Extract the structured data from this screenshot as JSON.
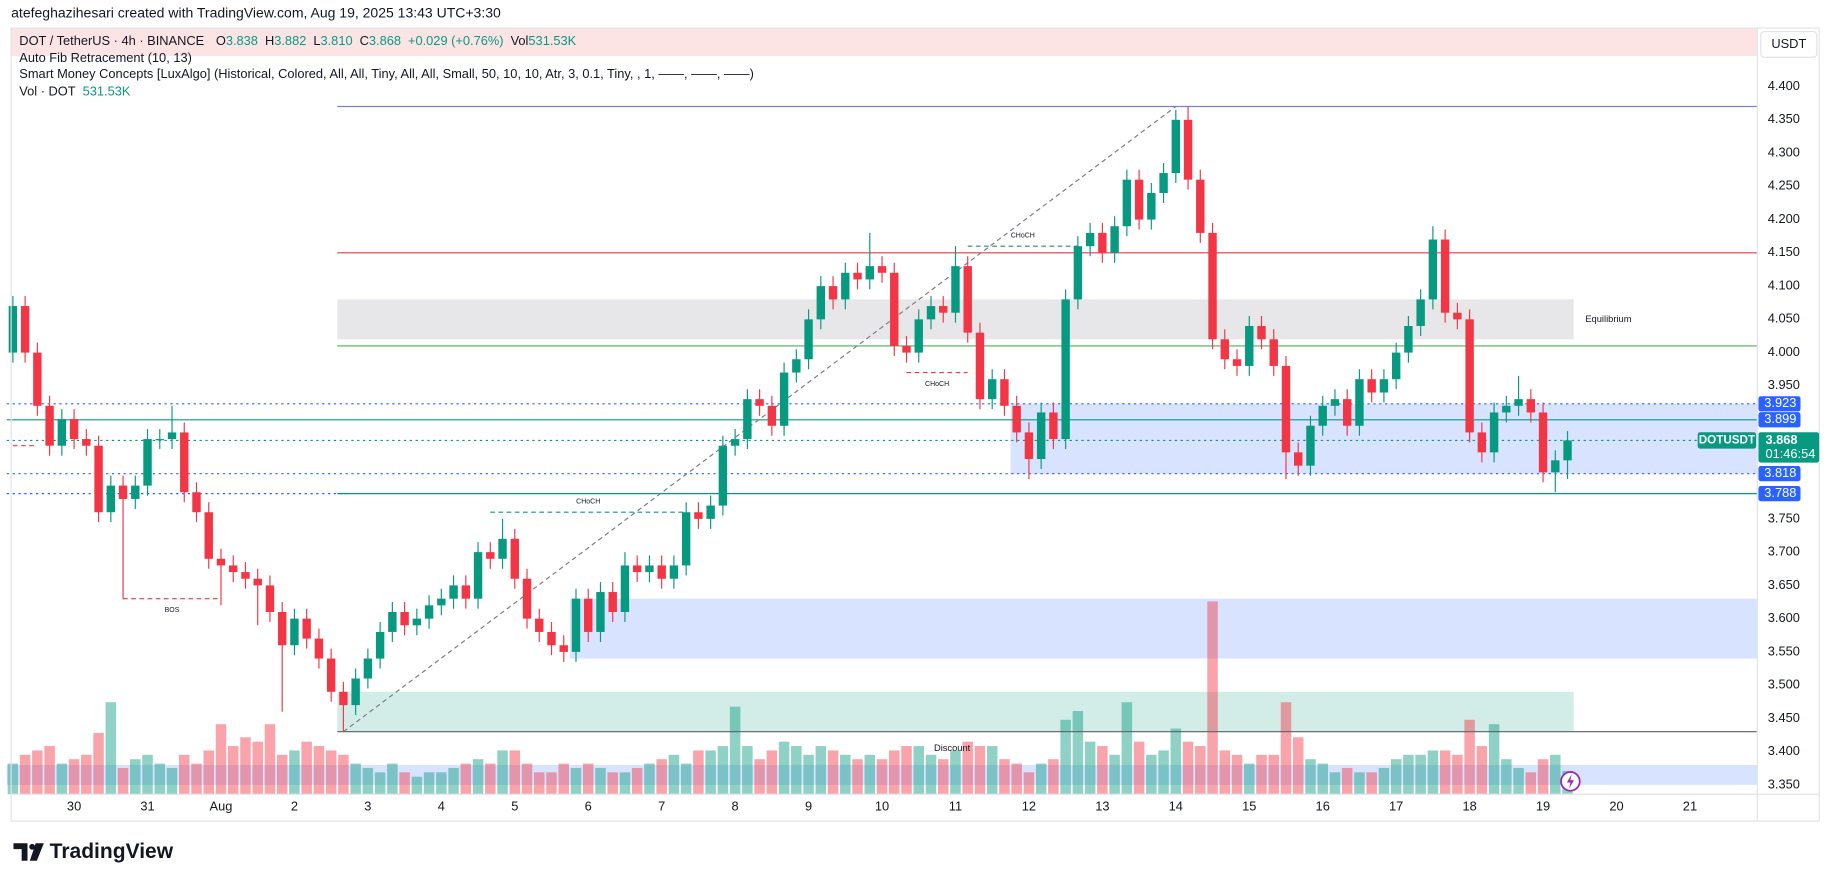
{
  "header": {
    "credit": "atefeghazihesari created with TradingView.com, Aug 19, 2025 13:43 UTC+3:30",
    "symbol": "DOT / TetherUS · 4h · BINANCE",
    "ohlc": [
      {
        "key": "O",
        "value": "3.838"
      },
      {
        "key": "H",
        "value": "3.882"
      },
      {
        "key": "L",
        "value": "3.810"
      },
      {
        "key": "C",
        "value": "3.868"
      }
    ],
    "change": "+0.029 (+0.76%)",
    "vol_key": "Vol",
    "vol_value": "531.53K",
    "indicators": [
      "Auto Fib Retracement (10, 13)",
      "Smart Money Concepts [LuxAlgo] (Historical, Colored, All, All, Tiny, All, All, Small, 50, 10, 10, Atr, 3, 0.1, Tiny, , 1, ——, ——, ——)"
    ],
    "vol_pane": "Vol · DOT",
    "vol_pane_value": "531.53K",
    "currency": "USDT",
    "brand": "TradingView"
  },
  "chart_data": {
    "type": "candlestick",
    "up_color": "#089981",
    "down_color": "#f23645",
    "categories": [
      null,
      null,
      null,
      null,
      null,
      "30",
      null,
      null,
      null,
      null,
      null,
      "31",
      null,
      null,
      null,
      null,
      null,
      "Aug",
      null,
      null,
      null,
      null,
      null,
      "2",
      null,
      null,
      null,
      null,
      null,
      "3",
      null,
      null,
      null,
      null,
      null,
      "4",
      null,
      null,
      null,
      null,
      null,
      "5",
      null,
      null,
      null,
      null,
      null,
      "6",
      null,
      null,
      null,
      null,
      null,
      "7",
      null,
      null,
      null,
      null,
      null,
      "8",
      null,
      null,
      null,
      null,
      null,
      "9",
      null,
      null,
      null,
      null,
      null,
      "10",
      null,
      null,
      null,
      null,
      null,
      "11",
      null,
      null,
      null,
      null,
      null,
      "12",
      null,
      null,
      null,
      null,
      null,
      "13",
      null,
      null,
      null,
      null,
      null,
      "14",
      null,
      null,
      null,
      null,
      null,
      "15",
      null,
      null,
      null,
      null,
      null,
      "16",
      null,
      null,
      null,
      null,
      null,
      "17",
      null,
      null,
      null,
      null,
      null,
      "18",
      null,
      null,
      null,
      null,
      null,
      "19",
      null,
      null,
      null,
      null,
      null,
      "20",
      null,
      null,
      null,
      null,
      null,
      "21",
      null,
      null,
      null,
      null,
      null
    ],
    "open": [
      4.0,
      4.07,
      4.0,
      3.92,
      3.86,
      3.9,
      3.87,
      3.86,
      3.76,
      3.8,
      3.78,
      3.8,
      3.87,
      3.87,
      3.88,
      3.79,
      3.76,
      3.69,
      3.68,
      3.67,
      3.66,
      3.65,
      3.61,
      3.56,
      3.6,
      3.57,
      3.54,
      3.49,
      3.47,
      3.51,
      3.54,
      3.58,
      3.61,
      3.59,
      3.6,
      3.62,
      3.63,
      3.65,
      3.63,
      3.7,
      3.69,
      3.72,
      3.66,
      3.6,
      3.58,
      3.56,
      3.55,
      3.63,
      3.58,
      3.64,
      3.61,
      3.68,
      3.67,
      3.68,
      3.66,
      3.68,
      3.76,
      3.75,
      3.77,
      3.86,
      3.87,
      3.93,
      3.92,
      3.89,
      3.97,
      3.99,
      4.05,
      4.1,
      4.08,
      4.12,
      4.11,
      4.13,
      4.12,
      4.01,
      4.0,
      4.05,
      4.07,
      4.06,
      4.13,
      4.03,
      3.93,
      3.96,
      3.92,
      3.88,
      3.84,
      3.91,
      3.87,
      4.08,
      4.16,
      4.18,
      4.15,
      4.19,
      4.26,
      4.2,
      4.24,
      4.27,
      4.35,
      4.26,
      4.18,
      4.02,
      3.99,
      3.98,
      4.04,
      4.02,
      3.98,
      3.85,
      3.83,
      3.89,
      3.92,
      3.93,
      3.89,
      3.96,
      3.94,
      3.96,
      4.0,
      4.04,
      4.08,
      4.17,
      4.06,
      4.05,
      3.88,
      3.85,
      3.91,
      3.92,
      3.93,
      3.91,
      3.82,
      3.838,
      null,
      null,
      null,
      null,
      null,
      null,
      null,
      null,
      null,
      null,
      null,
      null,
      null,
      null,
      null
    ],
    "high": [
      4.085,
      4.085,
      4.015,
      3.935,
      3.915,
      3.915,
      3.885,
      3.875,
      3.815,
      3.815,
      3.815,
      3.885,
      3.885,
      3.92,
      3.895,
      3.805,
      3.775,
      3.705,
      3.695,
      3.685,
      3.675,
      3.665,
      3.625,
      3.615,
      3.615,
      3.585,
      3.555,
      3.505,
      3.525,
      3.555,
      3.595,
      3.625,
      3.625,
      3.615,
      3.635,
      3.645,
      3.665,
      3.665,
      3.715,
      3.715,
      3.75,
      3.735,
      3.675,
      3.615,
      3.595,
      3.575,
      3.645,
      3.645,
      3.655,
      3.655,
      3.7,
      3.695,
      3.695,
      3.695,
      3.695,
      3.775,
      3.775,
      3.785,
      3.875,
      3.885,
      3.945,
      3.945,
      3.935,
      3.985,
      4.005,
      4.065,
      4.115,
      4.115,
      4.135,
      4.135,
      4.18,
      4.145,
      4.135,
      4.025,
      4.065,
      4.085,
      4.085,
      4.16,
      4.145,
      4.045,
      3.975,
      3.975,
      3.935,
      3.895,
      3.925,
      3.925,
      4.095,
      4.175,
      4.195,
      4.195,
      4.205,
      4.275,
      4.275,
      4.255,
      4.285,
      4.365,
      4.37,
      4.275,
      4.195,
      4.035,
      4.005,
      4.055,
      4.055,
      4.035,
      3.995,
      3.865,
      3.905,
      3.935,
      3.945,
      3.945,
      3.975,
      3.975,
      3.975,
      4.015,
      4.055,
      4.095,
      4.19,
      4.185,
      4.075,
      4.065,
      3.895,
      3.925,
      3.935,
      3.965,
      3.945,
      3.925,
      3.853,
      3.882,
      null,
      null,
      null,
      null,
      null,
      null,
      null,
      null,
      null,
      null,
      null,
      null,
      null,
      null,
      null
    ],
    "low": [
      3.985,
      3.985,
      3.905,
      3.845,
      3.845,
      3.855,
      3.845,
      3.745,
      3.745,
      3.63,
      3.765,
      3.785,
      3.855,
      3.855,
      3.775,
      3.745,
      3.675,
      3.62,
      3.655,
      3.645,
      3.59,
      3.595,
      3.46,
      3.545,
      3.555,
      3.525,
      3.475,
      3.43,
      3.455,
      3.495,
      3.525,
      3.565,
      3.575,
      3.575,
      3.585,
      3.605,
      3.615,
      3.615,
      3.615,
      3.675,
      3.675,
      3.645,
      3.585,
      3.565,
      3.545,
      3.535,
      3.535,
      3.565,
      3.565,
      3.595,
      3.595,
      3.655,
      3.655,
      3.645,
      3.645,
      3.665,
      3.735,
      3.735,
      3.755,
      3.845,
      3.855,
      3.905,
      3.875,
      3.875,
      3.955,
      3.975,
      4.035,
      4.065,
      4.065,
      4.095,
      4.095,
      4.105,
      3.995,
      3.985,
      3.985,
      4.035,
      4.045,
      4.045,
      4.015,
      3.915,
      3.915,
      3.905,
      3.865,
      3.81,
      3.825,
      3.855,
      3.855,
      4.065,
      4.145,
      4.135,
      4.135,
      4.175,
      4.185,
      4.185,
      4.225,
      4.255,
      4.245,
      4.165,
      4.005,
      3.975,
      3.965,
      3.965,
      4.005,
      3.965,
      3.81,
      3.815,
      3.815,
      3.875,
      3.905,
      3.875,
      3.875,
      3.925,
      3.925,
      3.945,
      3.985,
      4.025,
      4.065,
      4.045,
      4.035,
      3.865,
      3.835,
      3.835,
      3.895,
      3.905,
      3.895,
      3.805,
      3.79,
      3.81,
      null,
      null,
      null,
      null,
      null,
      null,
      null,
      null,
      null,
      null,
      null,
      null,
      null,
      null,
      null
    ],
    "close": [
      4.07,
      4.0,
      3.92,
      3.86,
      3.9,
      3.87,
      3.86,
      3.76,
      3.8,
      3.78,
      3.8,
      3.87,
      3.87,
      3.88,
      3.79,
      3.76,
      3.69,
      3.68,
      3.67,
      3.66,
      3.65,
      3.61,
      3.56,
      3.6,
      3.57,
      3.54,
      3.49,
      3.47,
      3.51,
      3.54,
      3.58,
      3.61,
      3.59,
      3.6,
      3.62,
      3.63,
      3.65,
      3.63,
      3.7,
      3.69,
      3.72,
      3.66,
      3.6,
      3.58,
      3.56,
      3.55,
      3.63,
      3.58,
      3.64,
      3.61,
      3.68,
      3.67,
      3.68,
      3.66,
      3.68,
      3.76,
      3.75,
      3.77,
      3.86,
      3.87,
      3.93,
      3.92,
      3.89,
      3.97,
      3.99,
      4.05,
      4.1,
      4.08,
      4.12,
      4.11,
      4.13,
      4.12,
      4.01,
      4.0,
      4.05,
      4.07,
      4.06,
      4.13,
      4.03,
      3.93,
      3.96,
      3.92,
      3.88,
      3.84,
      3.91,
      3.87,
      4.08,
      4.16,
      4.18,
      4.15,
      4.19,
      4.26,
      4.2,
      4.24,
      4.27,
      4.35,
      4.26,
      4.18,
      4.02,
      3.99,
      3.98,
      4.04,
      4.02,
      3.98,
      3.85,
      3.83,
      3.89,
      3.92,
      3.93,
      3.89,
      3.96,
      3.94,
      3.96,
      4.0,
      4.04,
      4.08,
      4.17,
      4.06,
      4.05,
      3.88,
      3.85,
      3.91,
      3.92,
      3.93,
      3.91,
      3.82,
      3.838,
      3.868,
      null,
      null,
      null,
      null,
      null,
      null,
      null,
      null,
      null,
      null,
      null,
      null,
      null,
      null,
      null
    ],
    "volume": [
      700,
      900,
      1000,
      1100,
      700,
      800,
      900,
      1400,
      2100,
      600,
      800,
      900,
      700,
      600,
      900,
      700,
      1000,
      1600,
      1100,
      1300,
      1200,
      1600,
      900,
      1000,
      1200,
      1100,
      1000,
      900,
      700,
      600,
      500,
      700,
      500,
      400,
      500,
      500,
      600,
      700,
      800,
      700,
      1000,
      1000,
      700,
      500,
      500,
      700,
      600,
      700,
      600,
      500,
      500,
      600,
      700,
      800,
      900,
      700,
      1000,
      1000,
      1100,
      2000,
      1100,
      800,
      1000,
      1200,
      1100,
      900,
      1100,
      1000,
      900,
      800,
      900,
      800,
      1000,
      1100,
      1100,
      900,
      800,
      1000,
      1200,
      1100,
      1100,
      800,
      700,
      500,
      700,
      800,
      1700,
      1900,
      1200,
      1100,
      900,
      2100,
      1200,
      900,
      1000,
      1500,
      1200,
      1100,
      4400,
      1000,
      900,
      700,
      900,
      900,
      2100,
      1300,
      800,
      700,
      500,
      600,
      500,
      500,
      600,
      800,
      900,
      900,
      1000,
      1000,
      900,
      1700,
      1100,
      1600,
      800,
      600,
      500,
      800,
      900,
      531.53,
      null,
      null,
      null,
      null,
      null,
      null,
      null,
      null,
      null,
      null,
      null,
      null,
      null,
      null,
      null
    ],
    "ylim": [
      3.336,
      4.488
    ],
    "yticks": [
      {
        "value": 4.4,
        "label": "4.400"
      },
      {
        "value": 4.35,
        "label": "4.350"
      },
      {
        "value": 4.3,
        "label": "4.300"
      },
      {
        "value": 4.25,
        "label": "4.250"
      },
      {
        "value": 4.2,
        "label": "4.200"
      },
      {
        "value": 4.15,
        "label": "4.150"
      },
      {
        "value": 4.1,
        "label": "4.100"
      },
      {
        "value": 4.05,
        "label": "4.050"
      },
      {
        "value": 4.0,
        "label": "4.000"
      },
      {
        "value": 3.95,
        "label": "3.950"
      },
      {
        "value": 3.75,
        "label": "3.750"
      },
      {
        "value": 3.7,
        "label": "3.700"
      },
      {
        "value": 3.65,
        "label": "3.650"
      },
      {
        "value": 3.6,
        "label": "3.600"
      },
      {
        "value": 3.55,
        "label": "3.550"
      },
      {
        "value": 3.5,
        "label": "3.500"
      },
      {
        "value": 3.45,
        "label": "3.450"
      },
      {
        "value": 3.4,
        "label": "3.400"
      },
      {
        "value": 3.35,
        "label": "3.350"
      }
    ],
    "grid": false,
    "zones": [
      {
        "start": 27,
        "end": 127,
        "top": 4.08,
        "bottom": 4.02,
        "color": "#787b86",
        "label": "Equilibrium"
      },
      {
        "start": 82,
        "end": 142,
        "top": 3.923,
        "bottom": 3.818,
        "color": "#2962ff"
      },
      {
        "start": 46,
        "end": 142,
        "top": 3.63,
        "bottom": 3.54,
        "color": "#2962ff"
      },
      {
        "start": 27,
        "end": 127,
        "top": 3.49,
        "bottom": 3.43,
        "color": "#089981"
      },
      {
        "start": 0,
        "end": 142,
        "top": 3.38,
        "bottom": 3.35,
        "color": "#2962ff",
        "label": "Discount"
      }
    ],
    "levels": [
      {
        "price": 4.37,
        "start": 27,
        "end": 142,
        "color": "#7e7fc8",
        "style": "solid"
      },
      {
        "price": 4.15,
        "start": 27,
        "end": 142,
        "color": "#f23645",
        "style": "solid"
      },
      {
        "price": 4.01,
        "start": 27,
        "end": 142,
        "color": "#4caf50",
        "style": "solid"
      },
      {
        "price": 3.923,
        "start": 0,
        "end": 142,
        "color": "#2962ff",
        "style": "dotted"
      },
      {
        "price": 3.899,
        "start": 0,
        "end": 142,
        "color": "#089981",
        "style": "solid"
      },
      {
        "price": 3.868,
        "start": 0,
        "end": 142,
        "color": "#089981",
        "style": "dotted"
      },
      {
        "price": 3.818,
        "start": 0,
        "end": 142,
        "color": "#2962ff",
        "style": "dotted"
      },
      {
        "price": 3.788,
        "start": 0,
        "end": 27,
        "color": "#2962ff",
        "style": "dotted"
      },
      {
        "price": 3.788,
        "start": 27,
        "end": 142,
        "color": "#089981",
        "style": "solid"
      },
      {
        "price": 3.43,
        "start": 27,
        "end": 142,
        "color": "#5d606b",
        "style": "solid"
      }
    ],
    "structures": [
      {
        "price": 4.16,
        "start": 78,
        "end": 87,
        "color": "#089981",
        "label": "CHoCH"
      },
      {
        "price": 3.97,
        "start": 73,
        "end": 78,
        "color": "#f23645",
        "label": "CHoCH"
      },
      {
        "price": 3.76,
        "start": 39,
        "end": 55,
        "color": "#089981",
        "label": "CHoCH"
      },
      {
        "price": 3.63,
        "start": 9,
        "end": 17,
        "color": "#f23645",
        "label": "BOS"
      },
      {
        "price": 3.86,
        "start": 0,
        "end": 2,
        "color": "#f23645"
      }
    ],
    "fib": {
      "start": 27,
      "start_price": 3.43,
      "end": 95,
      "end_price": 4.37,
      "color": "#787b86"
    },
    "price_tags": [
      {
        "value": 3.923,
        "color": "#2962ff"
      },
      {
        "value": 3.899,
        "color": "#2962ff"
      },
      {
        "value": 3.818,
        "color": "#2962ff"
      },
      {
        "value": 3.788,
        "color": "#2962ff"
      }
    ],
    "current": {
      "value": 3.868,
      "name": "DOTUSDT",
      "countdown": "01:46:54",
      "color": "#089981"
    }
  }
}
